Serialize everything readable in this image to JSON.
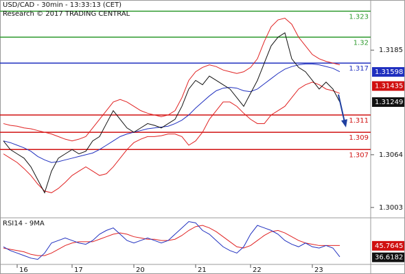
{
  "chart_data": [
    {
      "type": "line",
      "title": "USD/CAD - 30min - 13:33:13 (CET)",
      "subtitle": "Research © 2017 TRADING CENTRAL",
      "categories": [
        null,
        null,
        "16",
        null,
        null,
        null,
        null,
        null,
        null,
        null,
        "17",
        null,
        null,
        null,
        null,
        null,
        null,
        null,
        null,
        "20",
        null,
        null,
        null,
        null,
        null,
        null,
        null,
        null,
        "21",
        null,
        null,
        null,
        null,
        null,
        null,
        null,
        "22",
        null,
        null,
        null,
        null,
        null,
        null,
        null,
        null,
        "23",
        null,
        null,
        null,
        null
      ],
      "series": [
        {
          "color": "#e02020",
          "values": [
            1.31,
            1.3098,
            1.3097,
            1.3095,
            1.3094,
            1.3092,
            1.309,
            1.3088,
            1.3085,
            1.3082,
            1.308,
            1.3082,
            1.3085,
            1.3095,
            1.3105,
            1.3115,
            1.3125,
            1.3128,
            1.3125,
            1.312,
            1.3115,
            1.3112,
            1.311,
            1.3108,
            1.311,
            1.3115,
            1.313,
            1.315,
            1.316,
            1.3165,
            1.3168,
            1.3166,
            1.3162,
            1.316,
            1.3158,
            1.316,
            1.3165,
            1.3175,
            1.3195,
            1.3212,
            1.322,
            1.3222,
            1.3215,
            1.32,
            1.319,
            1.318,
            1.3175,
            1.3172,
            1.317,
            1.3168
          ]
        },
        {
          "color": "#e02020",
          "values": [
            1.3065,
            1.306,
            1.3055,
            1.3048,
            1.304,
            1.303,
            1.3022,
            1.302,
            1.3025,
            1.3032,
            1.304,
            1.3045,
            1.305,
            1.3045,
            1.304,
            1.3042,
            1.305,
            1.306,
            1.307,
            1.3078,
            1.3082,
            1.3085,
            1.3085,
            1.3086,
            1.3088,
            1.3088,
            1.3085,
            1.3075,
            1.308,
            1.309,
            1.3105,
            1.3115,
            1.3125,
            1.3125,
            1.312,
            1.3112,
            1.3105,
            1.31,
            1.31,
            1.311,
            1.3115,
            1.312,
            1.313,
            1.314,
            1.3145,
            1.3148,
            1.3145,
            1.314,
            1.3138,
            1.3135
          ]
        },
        {
          "color": "#1f2fbf",
          "values": [
            1.308,
            1.3078,
            1.3075,
            1.3072,
            1.3068,
            1.3062,
            1.3058,
            1.3055,
            1.3056,
            1.3058,
            1.306,
            1.3062,
            1.3064,
            1.3066,
            1.307,
            1.3075,
            1.308,
            1.3085,
            1.3088,
            1.309,
            1.3092,
            1.3094,
            1.3095,
            1.3096,
            1.3097,
            1.31,
            1.3104,
            1.311,
            1.3118,
            1.3125,
            1.3132,
            1.3138,
            1.3141,
            1.3142,
            1.3141,
            1.3138,
            1.3137,
            1.314,
            1.3146,
            1.3152,
            1.3158,
            1.3163,
            1.3166,
            1.3168,
            1.3169,
            1.3169,
            1.3168,
            1.3166,
            1.3164,
            1.316
          ]
        },
        {
          "color": "#111111",
          "values": [
            1.308,
            1.307,
            1.3065,
            1.306,
            1.305,
            1.3035,
            1.302,
            1.3045,
            1.306,
            1.3065,
            1.307,
            1.3065,
            1.3068,
            1.308,
            1.3085,
            1.31,
            1.3115,
            1.3105,
            1.3095,
            1.309,
            1.3095,
            1.31,
            1.3098,
            1.3095,
            1.31,
            1.3105,
            1.312,
            1.314,
            1.315,
            1.3145,
            1.3155,
            1.315,
            1.3145,
            1.314,
            1.313,
            1.312,
            1.3135,
            1.315,
            1.317,
            1.319,
            1.32,
            1.3205,
            1.3175,
            1.3165,
            1.316,
            1.315,
            1.314,
            1.3148,
            1.314,
            1.3125
          ]
        }
      ],
      "ylim": [
        1.2991,
        1.3243
      ],
      "yticks": [
        1.3185,
        1.3064,
        1.3003
      ],
      "levels": [
        {
          "value": 1.323,
          "color": "#2e9a2e"
        },
        {
          "value": 1.32,
          "color": "#2e9a2e"
        },
        {
          "value": 1.317,
          "color": "#1f2fbf"
        },
        {
          "value": 1.311,
          "color": "#d01010"
        },
        {
          "value": 1.309,
          "color": "#d01010"
        },
        {
          "value": 1.307,
          "color": "#d01010"
        }
      ],
      "price_tags": [
        {
          "value": 1.31598,
          "color": "#1f2fbf"
        },
        {
          "value": 1.31435,
          "color": "#d01010"
        },
        {
          "value": 1.31249,
          "color": "#111111"
        }
      ]
    },
    {
      "type": "line",
      "title": "RSI14 - 9MA",
      "series": [
        {
          "color": "#e02020",
          "values": [
            44,
            43,
            42,
            41,
            39,
            38,
            38,
            40,
            43,
            46,
            48,
            49,
            49,
            49,
            51,
            53,
            55,
            56,
            55,
            53,
            52,
            51,
            51,
            50,
            50,
            51,
            54,
            58,
            61,
            62,
            60,
            57,
            53,
            49,
            45,
            44,
            46,
            50,
            54,
            57,
            58,
            56,
            53,
            50,
            48,
            47,
            46,
            46,
            46,
            46
          ]
        },
        {
          "color": "#1f2fbf",
          "values": [
            45,
            42,
            40,
            38,
            36,
            35,
            40,
            48,
            50,
            52,
            50,
            48,
            47,
            50,
            55,
            58,
            60,
            55,
            50,
            48,
            50,
            52,
            50,
            48,
            50,
            55,
            60,
            65,
            64,
            58,
            55,
            50,
            45,
            42,
            40,
            45,
            55,
            62,
            60,
            58,
            55,
            50,
            47,
            45,
            48,
            45,
            44,
            46,
            44,
            37
          ]
        }
      ],
      "ylim": [
        31,
        68
      ],
      "value_tags": [
        {
          "value": 45.7645,
          "color": "#d01010"
        },
        {
          "value": 36.6182,
          "color": "#111111"
        }
      ]
    }
  ]
}
